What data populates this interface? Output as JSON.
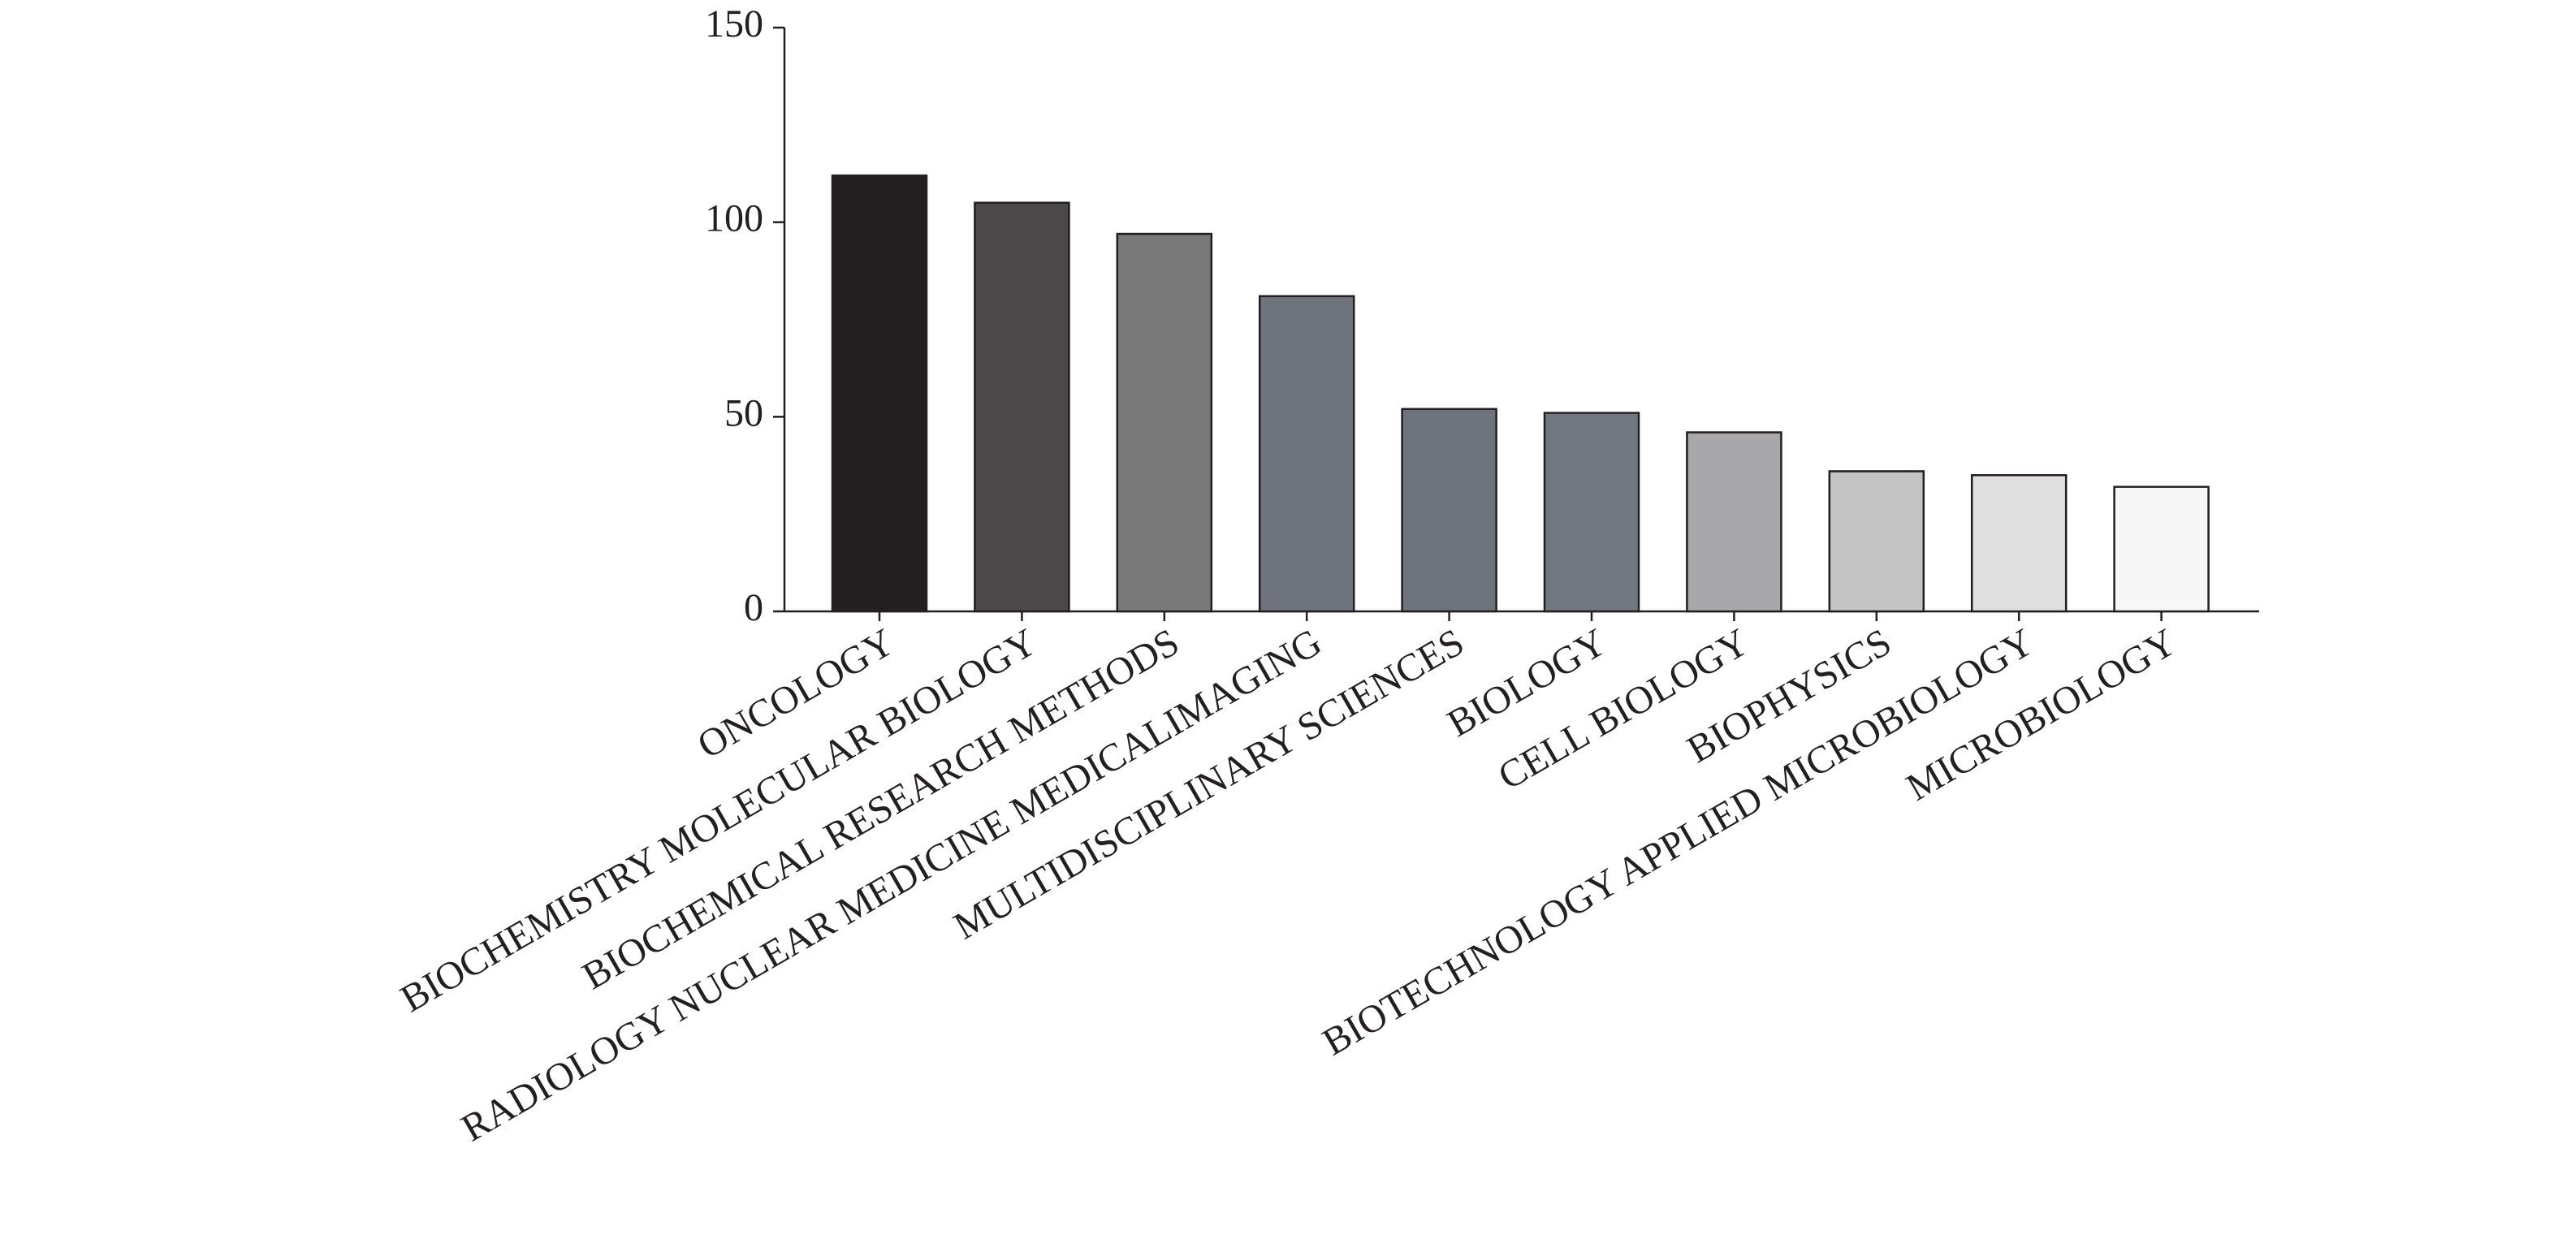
{
  "chart_data": {
    "type": "bar",
    "categories": [
      "ONCOLOGY",
      "BIOCHEMISTRY MOLECULAR BIOLOGY",
      "BIOCHEMICAL RESEARCH METHODS",
      "RADIOLOGY NUCLEAR MEDICINE MEDICALIMAGING",
      "MULTIDISCIPLINARY SCIENCES",
      "BIOLOGY",
      "CELL BIOLOGY",
      "BIOPHYSICS",
      "BIOTECHNOLOGY APPLIED MICROBIOLOGY",
      "MICROBIOLOGY"
    ],
    "values": [
      112,
      105,
      97,
      81,
      52,
      51,
      46,
      36,
      35,
      32
    ],
    "colors": [
      "#231f20",
      "#4a4849",
      "#7a797a",
      "#6f737b",
      "#6f737b",
      "#737780",
      "#a8a8aa",
      "#c4c4c4",
      "#e0e0e0",
      "#f7f7f7"
    ],
    "ylim": [
      0,
      150
    ],
    "yticks": [
      0,
      50,
      100,
      150
    ],
    "grid": false
  }
}
